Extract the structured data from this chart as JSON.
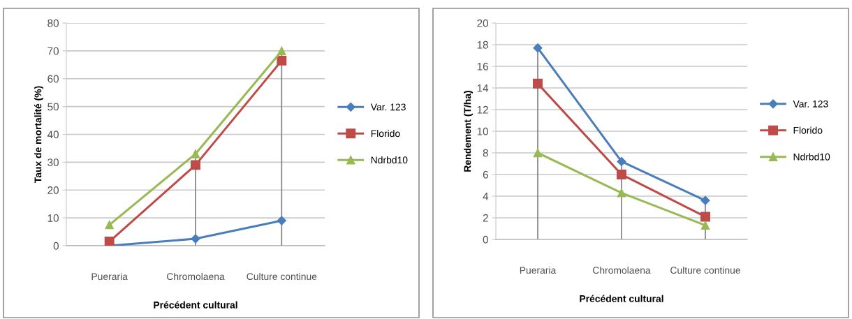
{
  "chart_data": [
    {
      "type": "line",
      "categories": [
        "Pueraria",
        "Chromolaena",
        "Culture continue"
      ],
      "xlabel": "Précédent cultural",
      "ylabel": "Taux de mortalité (%)",
      "ylim": [
        0,
        80
      ],
      "yticks": [
        0,
        10,
        20,
        30,
        40,
        50,
        60,
        70,
        80
      ],
      "grid": "y",
      "legend": "right",
      "series": [
        {
          "name": "Var. 123",
          "color": "#4a7ebb",
          "marker": "diamond",
          "values": [
            0,
            2.5,
            9
          ]
        },
        {
          "name": "Florido",
          "color": "#be4b48",
          "marker": "square",
          "values": [
            1.5,
            29,
            66.5
          ]
        },
        {
          "name": "Ndrbd10",
          "color": "#98b954",
          "marker": "triangle",
          "values": [
            7.5,
            33,
            70
          ],
          "errors": [
            null,
            [
              33,
              0
            ],
            [
              70,
              0
            ]
          ]
        }
      ]
    },
    {
      "type": "line",
      "categories": [
        "Pueraria",
        "Chromolaena",
        "Culture continue"
      ],
      "xlabel": "Précédent cultural",
      "ylabel": "Rendement (T/ha)",
      "ylim": [
        0,
        20
      ],
      "yticks": [
        0,
        2,
        4,
        6,
        8,
        10,
        12,
        14,
        16,
        18,
        20
      ],
      "grid": "y",
      "legend": "right",
      "series": [
        {
          "name": "Var. 123",
          "color": "#4a7ebb",
          "marker": "diamond",
          "values": [
            17.7,
            7.2,
            3.6
          ],
          "errors": [
            [
              17.7,
              0
            ],
            [
              7.2,
              0
            ],
            [
              3.6,
              0
            ]
          ]
        },
        {
          "name": "Florido",
          "color": "#be4b48",
          "marker": "square",
          "values": [
            14.4,
            6,
            2.1
          ]
        },
        {
          "name": "Ndrbd10",
          "color": "#98b954",
          "marker": "triangle",
          "values": [
            8,
            4.3,
            1.3
          ]
        }
      ]
    }
  ]
}
